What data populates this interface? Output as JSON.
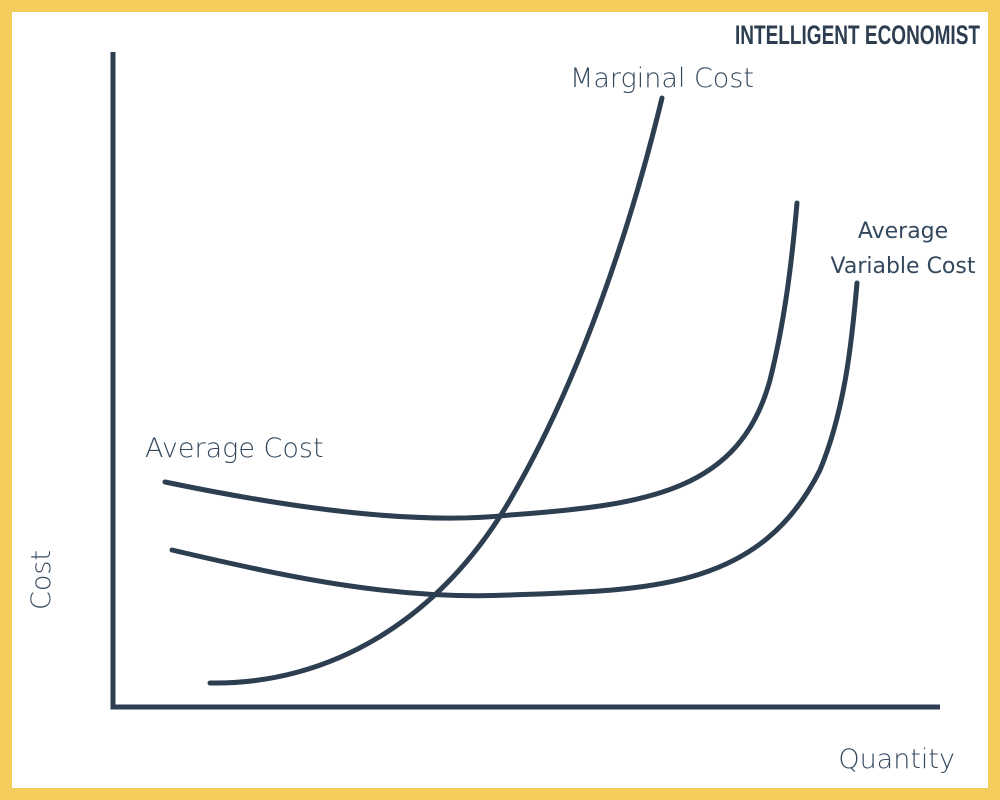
{
  "brand": "INTELLIGENT ECONOMIST",
  "axes": {
    "y_label": "Cost",
    "x_label": "Quantity"
  },
  "curves": [
    {
      "label_lines": [
        "Marginal Cost"
      ]
    },
    {
      "label_lines": [
        "Average Cost"
      ]
    },
    {
      "label_lines": [
        "Average",
        "Variable Cost"
      ]
    }
  ]
}
